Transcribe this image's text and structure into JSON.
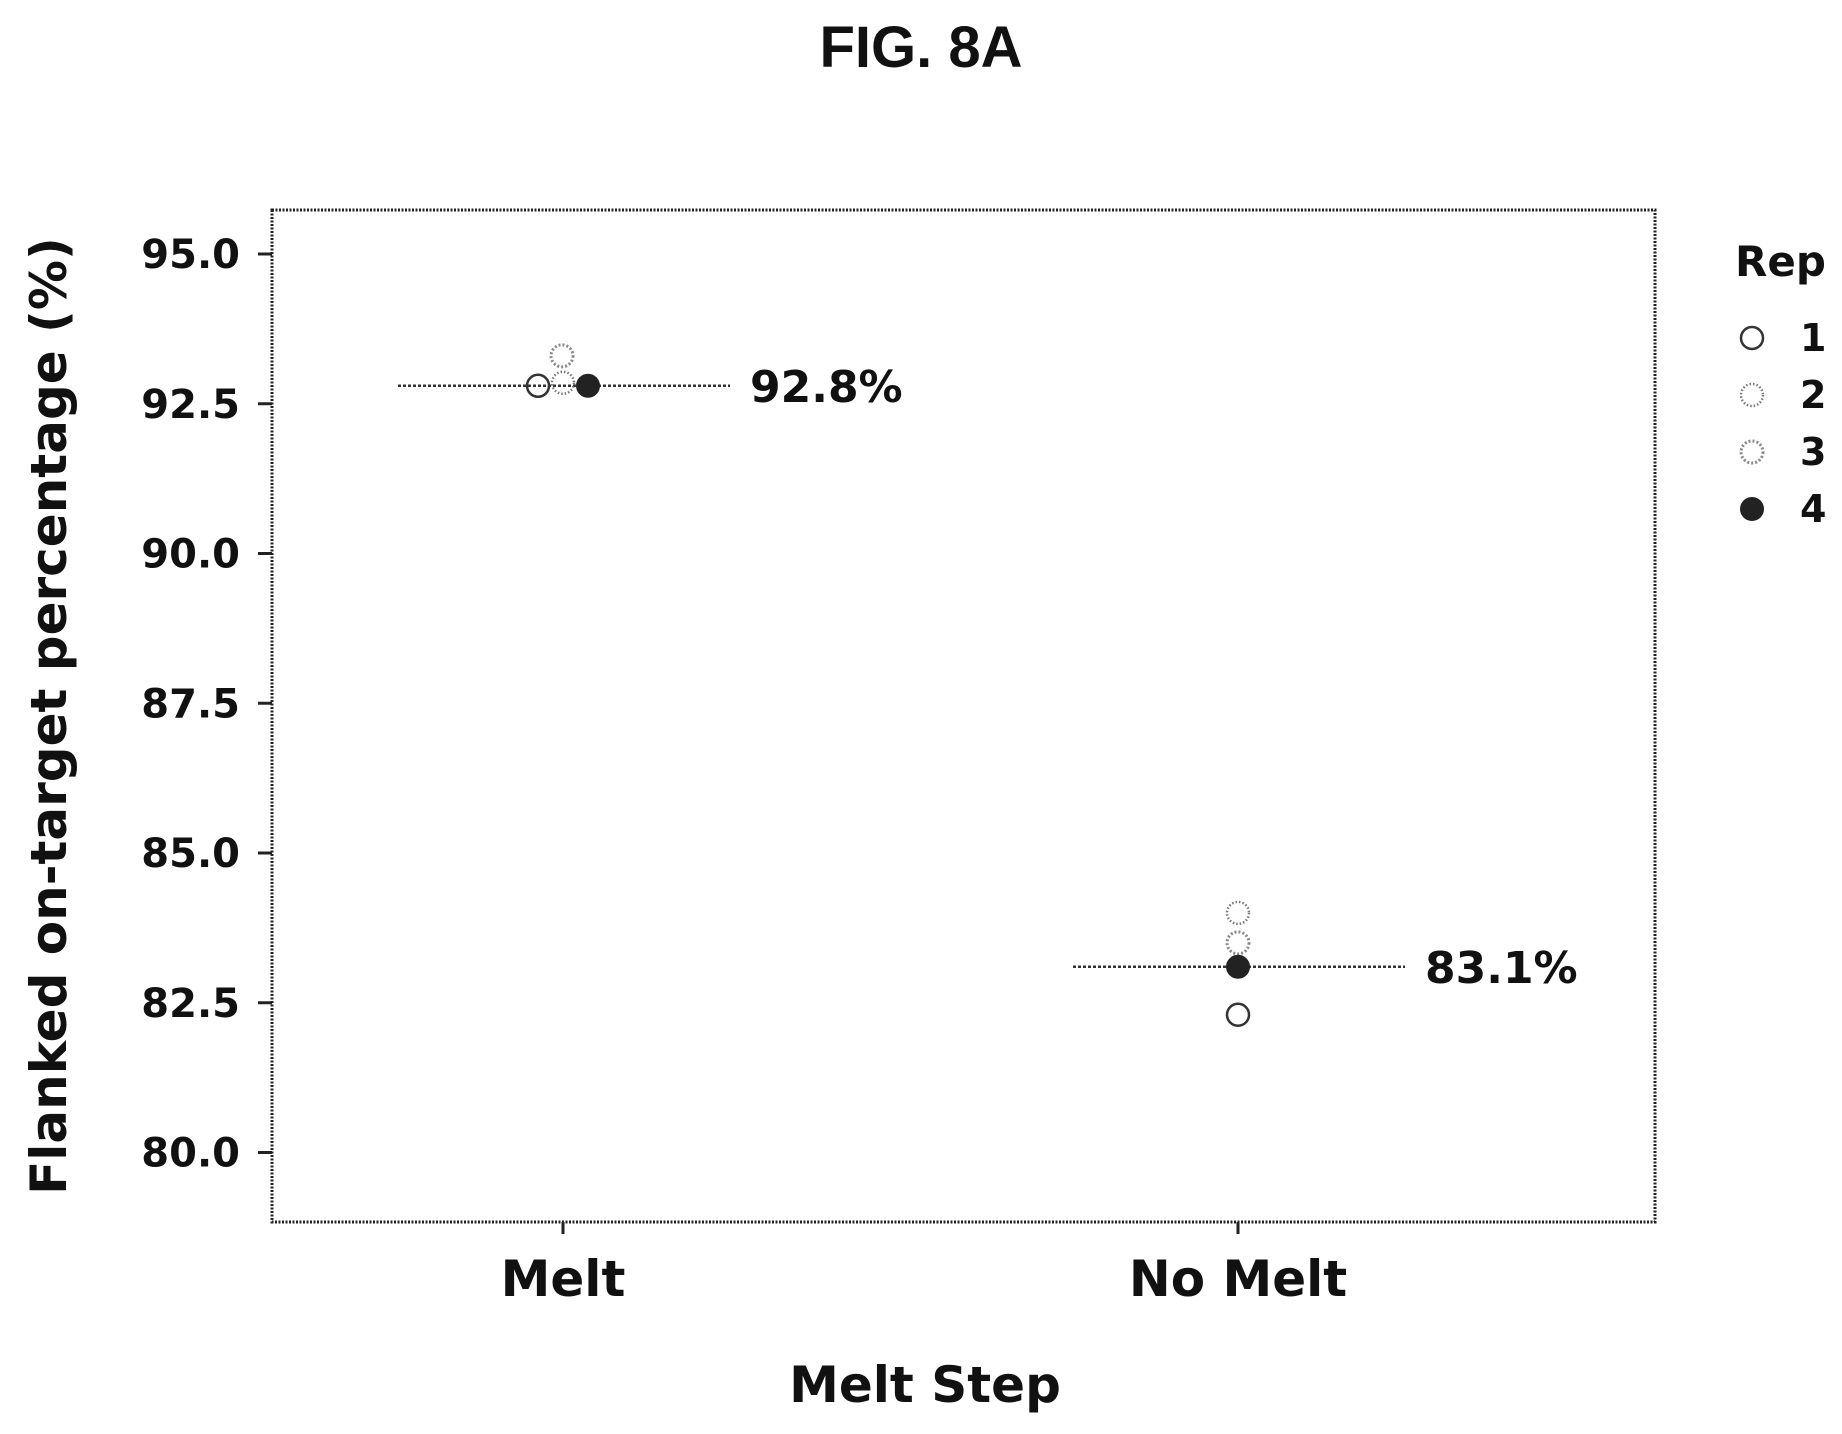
{
  "figure_title": "FIG. 8A",
  "chart_data": {
    "type": "scatter",
    "categories": [
      "Melt",
      "No Melt"
    ],
    "xlabel": "Melt Step",
    "ylabel": "Flanked on-target percentage (%)",
    "ylim": [
      79.0,
      96.0
    ],
    "yticks": [
      "95.0",
      "92.5",
      "90.0",
      "87.5",
      "85.0",
      "82.5",
      "80.0"
    ],
    "ytick_values": [
      95.0,
      92.5,
      90.0,
      87.5,
      85.0,
      82.5,
      80.0
    ],
    "grid": false,
    "legend": {
      "title": "Rep",
      "placement": "right",
      "entries": [
        "1",
        "2",
        "3",
        "4"
      ]
    },
    "means": [
      {
        "category": "Melt",
        "value": 92.8,
        "label": "92.8%"
      },
      {
        "category": "No Melt",
        "value": 83.1,
        "label": "83.1%"
      }
    ],
    "series": [
      {
        "name": "1",
        "style": "open",
        "values": [
          92.8,
          82.3
        ]
      },
      {
        "name": "2",
        "style": "light",
        "values": [
          92.85,
          84.0
        ]
      },
      {
        "name": "3",
        "style": "dotted",
        "values": [
          93.3,
          83.5
        ]
      },
      {
        "name": "4",
        "style": "filled",
        "values": [
          92.8,
          83.1
        ]
      }
    ],
    "point_colors": {
      "open": "#333333",
      "light": "#777777",
      "dotted": "#888888",
      "filled": "#222222"
    }
  }
}
